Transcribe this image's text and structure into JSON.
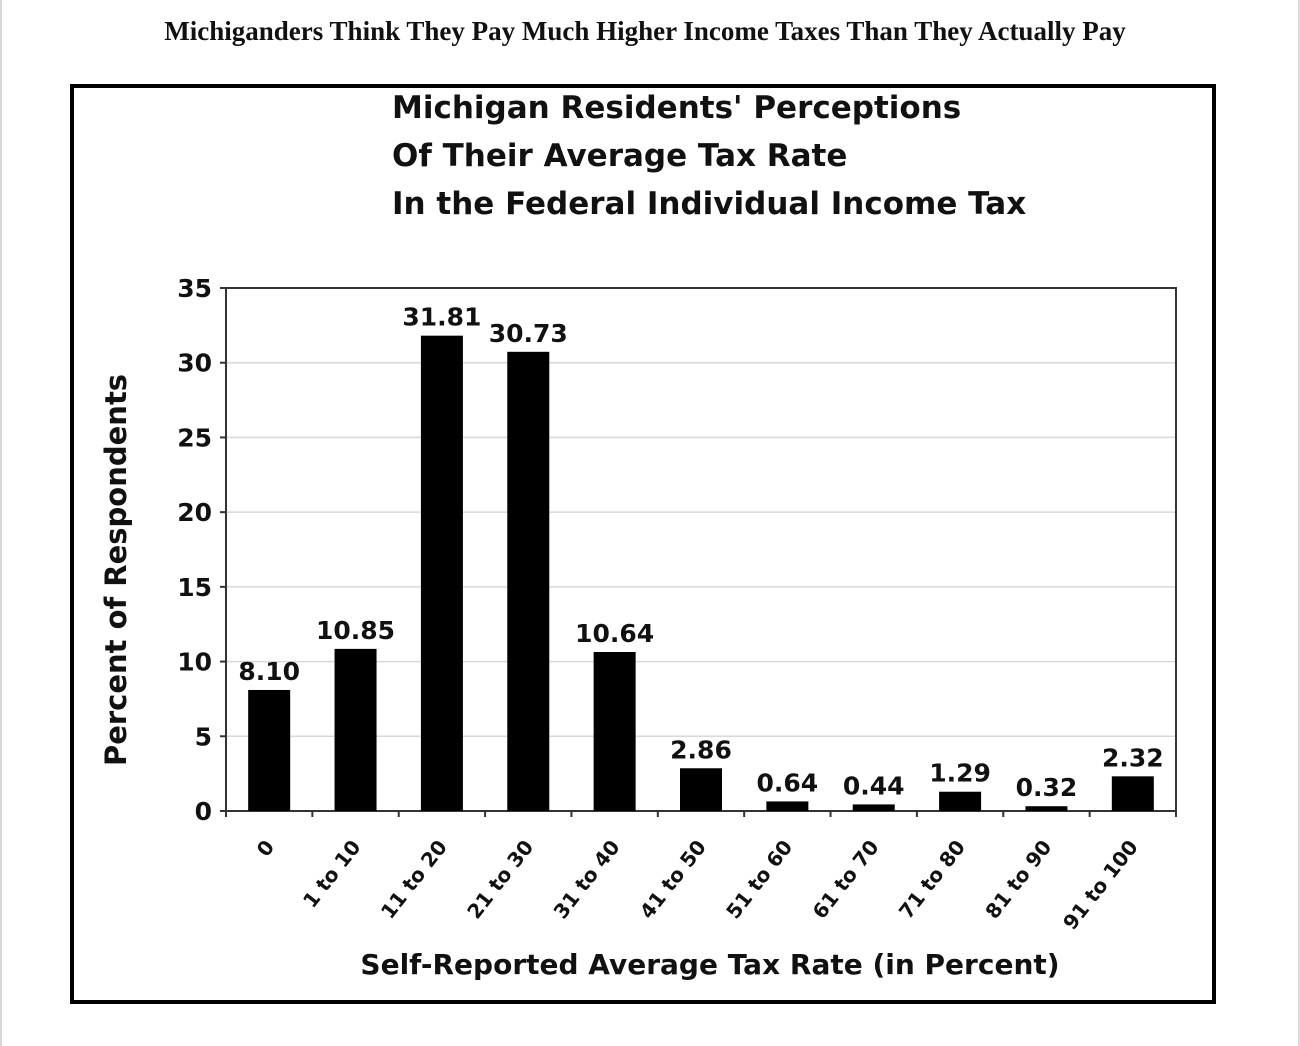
{
  "page": {
    "title": "Michiganders Think They Pay Much Higher Income Taxes Than They Actually Pay"
  },
  "chart_data": {
    "type": "bar",
    "title_lines": [
      "Michigan Residents' Perceptions",
      "Of Their Average Tax Rate",
      "In the Federal Individual Income Tax"
    ],
    "xlabel": "Self-Reported Average Tax Rate (in Percent)",
    "ylabel": "Percent of Respondents",
    "categories": [
      "0",
      "1 to 10",
      "11 to 20",
      "21 to 30",
      "31 to 40",
      "41 to 50",
      "51 to 60",
      "61 to 70",
      "71 to 80",
      "81 to 90",
      "91 to 100"
    ],
    "values": [
      8.1,
      10.85,
      31.81,
      30.73,
      10.64,
      2.86,
      0.64,
      0.44,
      1.29,
      0.32,
      2.32
    ],
    "value_labels": [
      "8.10",
      "10.85",
      "31.81",
      "30.73",
      "10.64",
      "2.86",
      "0.64",
      "0.44",
      "1.29",
      "0.32",
      "2.32"
    ],
    "ylim": [
      0,
      35
    ],
    "yticks": [
      0,
      5,
      10,
      15,
      20,
      25,
      30,
      35
    ],
    "grid": true,
    "legend": "none",
    "colors": {
      "bar": "#000000",
      "grid": "#d9d9d9",
      "axis": "#333333"
    }
  }
}
